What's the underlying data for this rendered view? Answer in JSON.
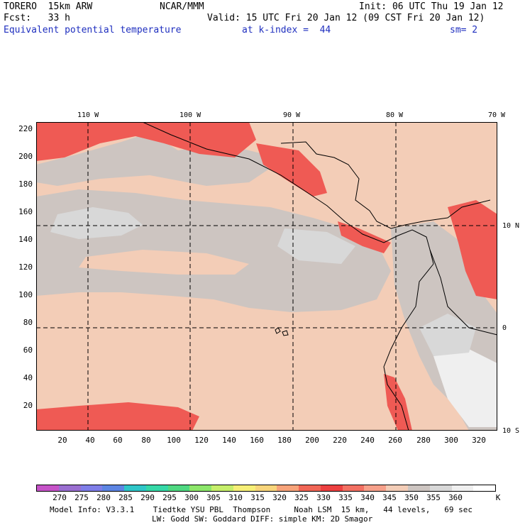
{
  "header": {
    "line1_left": "TORERO  15km ARW",
    "line1_mid": "NCAR/MMM",
    "line1_right": "Init: 06 UTC Thu 19 Jan 12",
    "line2_left": "Fcst:   33 h",
    "line2_right": "Valid: 15 UTC Fri 20 Jan 12 (09 CST Fri 20 Jan 12)",
    "line3_field": "Equivalent potential temperature",
    "line3_level": "at k-index =  44",
    "line3_sm": "sm= 2"
  },
  "map": {
    "lon_labels": [
      "110 W",
      "100 W",
      "90 W",
      "80 W",
      "70 W"
    ],
    "lat_labels": [
      "10 N",
      "0",
      "10 S"
    ],
    "y_ticks": [
      "220",
      "200",
      "180",
      "160",
      "140",
      "120",
      "100",
      "80",
      "60",
      "40",
      "20"
    ],
    "x_ticks": [
      "20",
      "40",
      "60",
      "80",
      "100",
      "120",
      "140",
      "160",
      "180",
      "200",
      "220",
      "240",
      "260",
      "280",
      "300",
      "320"
    ],
    "colors": {
      "band_335_340": "#f6a08a",
      "band_340_345": "#f3cdb7",
      "band_345_350": "#cdc5c1",
      "band_350_355": "#d8d8d8",
      "band_355_360": "#efefef",
      "band_330_335": "#ef5a54",
      "band_325_330": "#ec4040",
      "coast": "#000000"
    }
  },
  "colorbar": {
    "colors": [
      "#c653c8",
      "#9a6fd1",
      "#7f7ee8",
      "#5d85e3",
      "#2fc6c8",
      "#35d8a7",
      "#4fd881",
      "#8ce66a",
      "#c6ee6a",
      "#f6ef77",
      "#f8d57b",
      "#f7a37a",
      "#f16656",
      "#ec4040",
      "#f27062",
      "#f6a08a",
      "#f3cdb7",
      "#cdc5c1",
      "#d8d8d8",
      "#efefef",
      "#ffffff"
    ],
    "labels": [
      "270",
      "275",
      "280",
      "285",
      "290",
      "295",
      "300",
      "305",
      "310",
      "315",
      "320",
      "325",
      "330",
      "335",
      "340",
      "345",
      "350",
      "355",
      "360"
    ],
    "unit": "K"
  },
  "info": {
    "line1": "Model Info: V3.3.1    Tiedtke YSU PBL  Thompson     Noah LSM  15 km,   44 levels,   69 sec",
    "line2": "LW: Godd SW: Goddard DIFF: simple KM: 2D Smagor"
  }
}
